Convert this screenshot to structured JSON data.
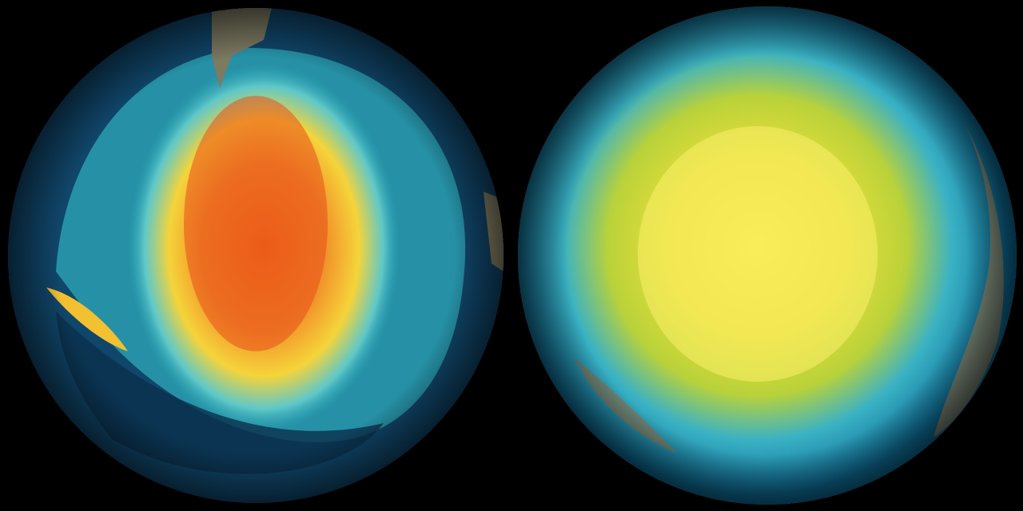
{
  "colors": {
    "background": "#000000",
    "ocean_deep": "#0f3a5c",
    "teal": "#2aa6b8",
    "yellow": "#f2e23a",
    "orange": "#f07a1c",
    "red": "#d0361a",
    "land": "#8a8468"
  }
}
